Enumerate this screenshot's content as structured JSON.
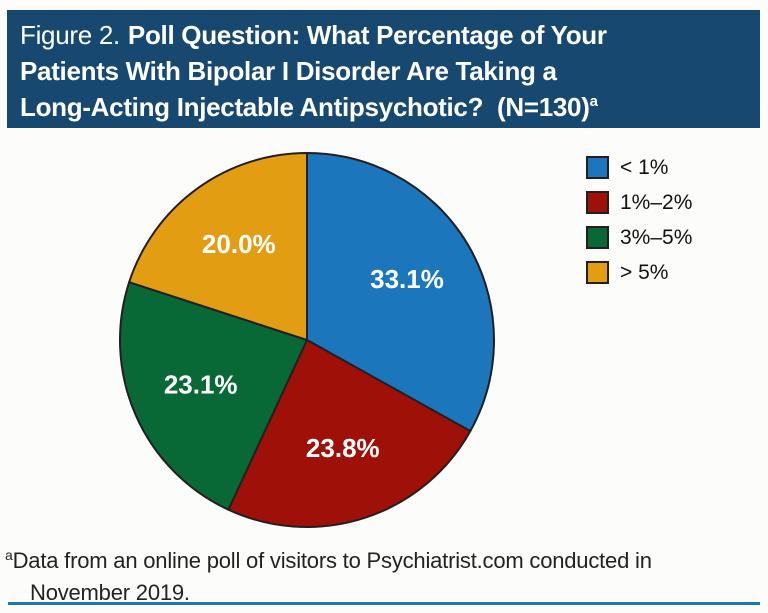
{
  "header": {
    "figure_label": "Figure 2.",
    "title_line1_rest": "Poll Question: What Percentage of Your",
    "title_line2": "Patients With Bipolar I Disorder Are Taking a",
    "title_line3": "Long-Acting Injectable Antipsychotic?  (N=130)",
    "footnote_marker": "a"
  },
  "chart_data": {
    "type": "pie",
    "title": "Poll Question: What Percentage of Your Patients With Bipolar I Disorder Are Taking a Long-Acting Injectable Antipsychotic? (N=130)",
    "n": 130,
    "start_angle_deg_from_top": 0,
    "direction": "clockwise",
    "legend_position": "right",
    "slices": [
      {
        "label": "< 1%",
        "value": 33.1,
        "display": "33.1%",
        "color": "#1b76bc"
      },
      {
        "label": "1%–2%",
        "value": 23.8,
        "display": "23.8%",
        "color": "#9f1108"
      },
      {
        "label": "3%–5%",
        "value": 23.1,
        "display": "23.1%",
        "color": "#086937"
      },
      {
        "label": "> 5%",
        "value": 20.0,
        "display": "20.0%",
        "color": "#e39d13"
      }
    ]
  },
  "footnote": {
    "marker": "a",
    "line1": "Data from an online poll of visitors to Psychiatrist.com conducted in",
    "line2": "November 2019."
  },
  "colors": {
    "header_bg": "#174870",
    "page_bg": "#fcfdfb",
    "slice_outline": "#231f20",
    "label_text": "#ffffff",
    "bottom_rule": "#1e78b0"
  }
}
